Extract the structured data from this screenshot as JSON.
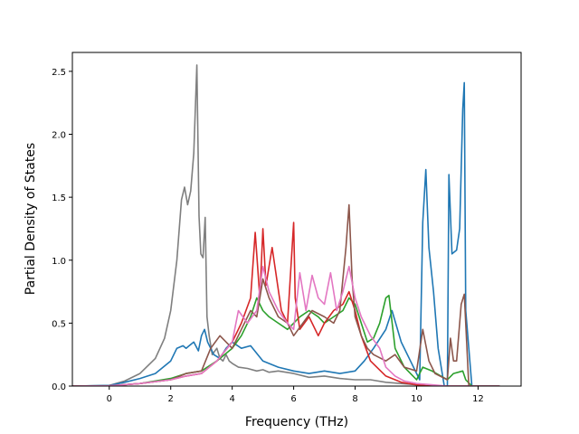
{
  "chart_data": {
    "type": "line",
    "title": "",
    "xlabel": "Frequency (THz)",
    "ylabel": "Partial Density of States",
    "xlim": [
      -1.2,
      13.4
    ],
    "ylim": [
      0,
      2.65
    ],
    "xticks": [
      0,
      2,
      4,
      6,
      8,
      10,
      12
    ],
    "yticks": [
      0.0,
      0.5,
      1.0,
      1.5,
      2.0,
      2.5
    ],
    "ytick_labels": [
      "0.0",
      "0.5",
      "1.0",
      "1.5",
      "2.0",
      "2.5"
    ],
    "grid": false,
    "legend": "none",
    "series": [
      {
        "color": "#7f7f7f",
        "x": [
          -1.2,
          0,
          0.5,
          1.0,
          1.5,
          1.8,
          2.0,
          2.2,
          2.35,
          2.45,
          2.55,
          2.65,
          2.75,
          2.85,
          2.92,
          2.98,
          3.05,
          3.12,
          3.18,
          3.25,
          3.35,
          3.5,
          3.6,
          3.7,
          3.8,
          3.9,
          4.0,
          4.2,
          4.5,
          4.8,
          5.0,
          5.2,
          5.5,
          6.0,
          6.5,
          7.0,
          7.5,
          8.0,
          8.5,
          9.0,
          9.5,
          10.0,
          10.3,
          10.6,
          11.0,
          11.2,
          11.5,
          12.0,
          12.7
        ],
        "y": [
          0,
          0.005,
          0.04,
          0.1,
          0.22,
          0.38,
          0.6,
          1.0,
          1.48,
          1.58,
          1.44,
          1.55,
          1.85,
          2.55,
          1.35,
          1.05,
          1.02,
          1.34,
          0.55,
          0.4,
          0.25,
          0.3,
          0.22,
          0.2,
          0.25,
          0.2,
          0.18,
          0.15,
          0.14,
          0.12,
          0.13,
          0.11,
          0.12,
          0.1,
          0.07,
          0.08,
          0.06,
          0.05,
          0.05,
          0.03,
          0.02,
          0.01,
          0.0,
          0.0,
          0.0,
          0.0,
          0.0,
          0.0,
          0.0
        ]
      },
      {
        "color": "#1f77b4",
        "x": [
          -1.2,
          0,
          0.5,
          1.0,
          1.5,
          2.0,
          2.2,
          2.4,
          2.5,
          2.6,
          2.75,
          2.9,
          3.0,
          3.1,
          3.2,
          3.4,
          3.6,
          3.8,
          4.0,
          4.3,
          4.6,
          5.0,
          5.5,
          6.0,
          6.5,
          7.0,
          7.5,
          8.0,
          8.3,
          8.6,
          9.0,
          9.2,
          9.5,
          9.8,
          10.0,
          10.1,
          10.2,
          10.3,
          10.4,
          10.55,
          10.7,
          10.9,
          11.0,
          11.05,
          11.15,
          11.3,
          11.4,
          11.5,
          11.55,
          11.6,
          11.8,
          12.7
        ],
        "y": [
          0,
          0.005,
          0.03,
          0.06,
          0.1,
          0.2,
          0.3,
          0.32,
          0.3,
          0.32,
          0.35,
          0.28,
          0.4,
          0.45,
          0.35,
          0.25,
          0.22,
          0.3,
          0.35,
          0.3,
          0.32,
          0.2,
          0.15,
          0.12,
          0.1,
          0.12,
          0.1,
          0.12,
          0.2,
          0.3,
          0.45,
          0.6,
          0.35,
          0.2,
          0.1,
          0.05,
          1.3,
          1.72,
          1.1,
          0.75,
          0.3,
          0.0,
          0.0,
          1.68,
          1.05,
          1.08,
          1.25,
          2.2,
          2.41,
          0.6,
          0.0,
          0.0
        ]
      },
      {
        "color": "#2ca02c",
        "x": [
          -1.2,
          0,
          1.0,
          2.0,
          2.5,
          3.0,
          3.5,
          4.0,
          4.3,
          4.6,
          4.8,
          5.0,
          5.2,
          5.5,
          5.8,
          6.0,
          6.2,
          6.5,
          6.8,
          7.0,
          7.3,
          7.6,
          7.8,
          8.0,
          8.2,
          8.4,
          8.6,
          8.8,
          9.0,
          9.1,
          9.3,
          9.6,
          9.8,
          10.0,
          10.2,
          10.5,
          11.0,
          11.2,
          11.5,
          11.6,
          11.8,
          12.7
        ],
        "y": [
          0,
          0.002,
          0.02,
          0.06,
          0.1,
          0.12,
          0.2,
          0.3,
          0.4,
          0.55,
          0.7,
          0.6,
          0.55,
          0.5,
          0.45,
          0.5,
          0.55,
          0.6,
          0.55,
          0.5,
          0.55,
          0.6,
          0.7,
          0.65,
          0.5,
          0.35,
          0.38,
          0.5,
          0.7,
          0.72,
          0.3,
          0.15,
          0.1,
          0.05,
          0.15,
          0.12,
          0.05,
          0.1,
          0.12,
          0.05,
          0.0,
          0.0
        ]
      },
      {
        "color": "#d62728",
        "x": [
          -1.2,
          0,
          1.0,
          2.0,
          2.5,
          3.0,
          3.5,
          4.0,
          4.3,
          4.6,
          4.75,
          4.9,
          5.0,
          5.1,
          5.3,
          5.6,
          5.8,
          6.0,
          6.05,
          6.2,
          6.5,
          6.8,
          7.0,
          7.3,
          7.6,
          7.8,
          8.0,
          8.2,
          8.5,
          9.0,
          9.5,
          10.0,
          10.5,
          11.0,
          11.5,
          12.7
        ],
        "y": [
          0,
          0.002,
          0.02,
          0.05,
          0.08,
          0.1,
          0.2,
          0.35,
          0.5,
          0.7,
          1.22,
          0.7,
          1.25,
          0.8,
          1.1,
          0.6,
          0.5,
          1.3,
          0.7,
          0.45,
          0.55,
          0.4,
          0.5,
          0.6,
          0.65,
          0.75,
          0.6,
          0.4,
          0.2,
          0.08,
          0.03,
          0.01,
          0.0,
          0.0,
          0.0,
          0.0
        ]
      },
      {
        "color": "#8c564b",
        "x": [
          -1.2,
          0,
          1.0,
          2.0,
          2.5,
          3.0,
          3.3,
          3.6,
          4.0,
          4.3,
          4.6,
          4.8,
          5.0,
          5.2,
          5.5,
          5.8,
          6.0,
          6.3,
          6.6,
          7.0,
          7.3,
          7.5,
          7.7,
          7.8,
          7.9,
          8.0,
          8.2,
          8.4,
          8.6,
          9.0,
          9.3,
          9.6,
          10.0,
          10.2,
          10.4,
          10.6,
          11.0,
          11.1,
          11.2,
          11.3,
          11.45,
          11.55,
          11.7,
          12.7
        ],
        "y": [
          0,
          0.002,
          0.02,
          0.05,
          0.1,
          0.12,
          0.3,
          0.4,
          0.3,
          0.45,
          0.6,
          0.55,
          0.85,
          0.7,
          0.55,
          0.5,
          0.4,
          0.5,
          0.6,
          0.55,
          0.5,
          0.6,
          1.1,
          1.44,
          0.85,
          0.55,
          0.4,
          0.3,
          0.25,
          0.2,
          0.25,
          0.15,
          0.12,
          0.45,
          0.2,
          0.1,
          0.05,
          0.38,
          0.2,
          0.2,
          0.65,
          0.73,
          0.0,
          0.0
        ]
      },
      {
        "color": "#e377c2",
        "x": [
          -1.2,
          0,
          1.0,
          2.0,
          2.5,
          3.0,
          3.5,
          4.0,
          4.2,
          4.5,
          4.8,
          5.0,
          5.2,
          5.5,
          5.8,
          6.0,
          6.2,
          6.4,
          6.6,
          6.8,
          7.0,
          7.2,
          7.4,
          7.6,
          7.8,
          8.0,
          8.2,
          8.5,
          8.8,
          9.0,
          9.3,
          9.6,
          10.0,
          10.5,
          11.0,
          11.5,
          12.7
        ],
        "y": [
          0,
          0.002,
          0.02,
          0.05,
          0.08,
          0.1,
          0.2,
          0.35,
          0.6,
          0.5,
          0.6,
          0.95,
          0.75,
          0.6,
          0.5,
          0.45,
          0.9,
          0.6,
          0.88,
          0.7,
          0.65,
          0.9,
          0.6,
          0.75,
          0.95,
          0.7,
          0.55,
          0.4,
          0.3,
          0.15,
          0.08,
          0.04,
          0.02,
          0.01,
          0.0,
          0.0,
          0.0
        ]
      }
    ]
  }
}
